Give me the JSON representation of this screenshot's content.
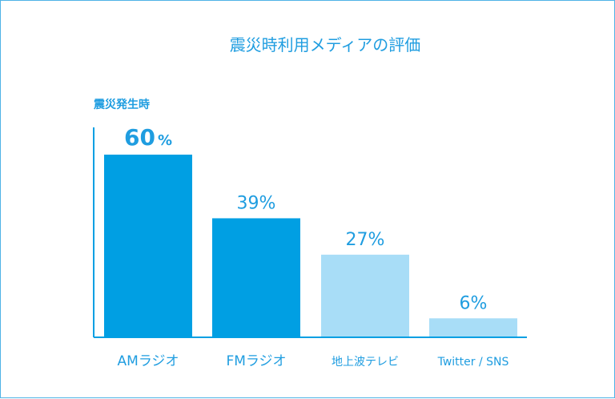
{
  "chart_data": {
    "type": "bar",
    "title": "震災時利用メディアの評価",
    "subtitle": "震災発生時",
    "categories": [
      "AMラジオ",
      "FMラジオ",
      "地上波テレビ",
      "Twitter / SNS"
    ],
    "values": [
      60,
      39,
      27,
      6
    ],
    "value_labels": [
      "60",
      "39%",
      "27%",
      "6%"
    ],
    "highlight_unit": "%",
    "ylim": [
      0,
      60
    ],
    "grid": false,
    "colors": [
      "#009fe3",
      "#009fe3",
      "#a8ddf7",
      "#a8ddf7"
    ],
    "text_color": "#1f9de0",
    "axis_color": "#009fe3"
  }
}
